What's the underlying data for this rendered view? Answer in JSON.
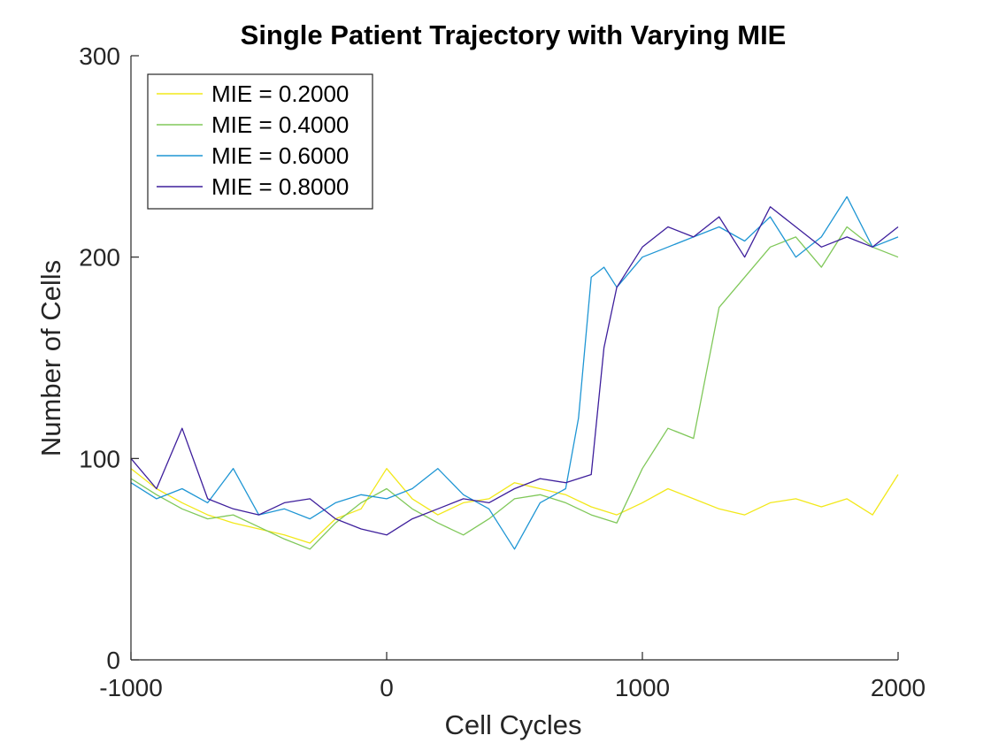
{
  "chart_data": {
    "type": "line",
    "title": "Single Patient Trajectory with Varying MIE",
    "xlabel": "Cell Cycles",
    "ylabel": "Number of Cells",
    "xlim": [
      -1000,
      2000
    ],
    "ylim": [
      0,
      300
    ],
    "xticks": [
      -1000,
      0,
      1000,
      2000
    ],
    "yticks": [
      0,
      100,
      200,
      300
    ],
    "xtick_labels": [
      "-1000",
      "0",
      "1000",
      "2000"
    ],
    "ytick_labels": [
      "0",
      "100",
      "200",
      "300"
    ],
    "grid": false,
    "legend_position": "top-left",
    "series": [
      {
        "name": "MIE = 0.2000",
        "color": "#f2e81a",
        "x": [
          -1000,
          -900,
          -800,
          -700,
          -600,
          -500,
          -400,
          -300,
          -200,
          -100,
          0,
          100,
          200,
          300,
          400,
          500,
          600,
          700,
          800,
          900,
          1000,
          1100,
          1200,
          1300,
          1400,
          1500,
          1600,
          1700,
          1800,
          1900,
          2000
        ],
        "y": [
          95,
          85,
          78,
          72,
          68,
          65,
          62,
          58,
          70,
          75,
          95,
          80,
          72,
          78,
          80,
          88,
          85,
          82,
          76,
          72,
          78,
          85,
          80,
          75,
          72,
          78,
          80,
          76,
          80,
          72,
          92
        ]
      },
      {
        "name": "MIE = 0.4000",
        "color": "#80c85a",
        "x": [
          -1000,
          -900,
          -800,
          -700,
          -600,
          -500,
          -400,
          -300,
          -200,
          -100,
          0,
          100,
          200,
          300,
          400,
          500,
          600,
          700,
          800,
          900,
          1000,
          1100,
          1200,
          1300,
          1400,
          1500,
          1600,
          1700,
          1800,
          1900,
          2000
        ],
        "y": [
          90,
          82,
          75,
          70,
          72,
          66,
          60,
          55,
          68,
          78,
          85,
          75,
          68,
          62,
          70,
          80,
          82,
          78,
          72,
          68,
          95,
          115,
          110,
          175,
          190,
          205,
          210,
          195,
          215,
          205,
          200
        ]
      },
      {
        "name": "MIE = 0.6000",
        "color": "#1f96d4",
        "x": [
          -1000,
          -900,
          -800,
          -700,
          -600,
          -500,
          -400,
          -300,
          -200,
          -100,
          0,
          100,
          200,
          300,
          400,
          500,
          600,
          700,
          750,
          800,
          850,
          900,
          1000,
          1100,
          1200,
          1300,
          1400,
          1500,
          1600,
          1700,
          1800,
          1900,
          2000
        ],
        "y": [
          88,
          80,
          85,
          78,
          95,
          72,
          75,
          70,
          78,
          82,
          80,
          85,
          95,
          82,
          75,
          55,
          78,
          85,
          120,
          190,
          195,
          185,
          200,
          205,
          210,
          215,
          208,
          220,
          200,
          210,
          230,
          205,
          210
        ]
      },
      {
        "name": "MIE = 0.8000",
        "color": "#3e1f9c",
        "x": [
          -1000,
          -900,
          -800,
          -700,
          -600,
          -500,
          -400,
          -300,
          -200,
          -100,
          0,
          100,
          200,
          300,
          400,
          500,
          600,
          700,
          800,
          850,
          900,
          1000,
          1100,
          1200,
          1300,
          1400,
          1500,
          1600,
          1700,
          1800,
          1900,
          2000
        ],
        "y": [
          100,
          85,
          115,
          80,
          75,
          72,
          78,
          80,
          70,
          65,
          62,
          70,
          75,
          80,
          78,
          85,
          90,
          88,
          92,
          155,
          185,
          205,
          215,
          210,
          220,
          200,
          225,
          215,
          205,
          210,
          205,
          215
        ]
      }
    ]
  }
}
